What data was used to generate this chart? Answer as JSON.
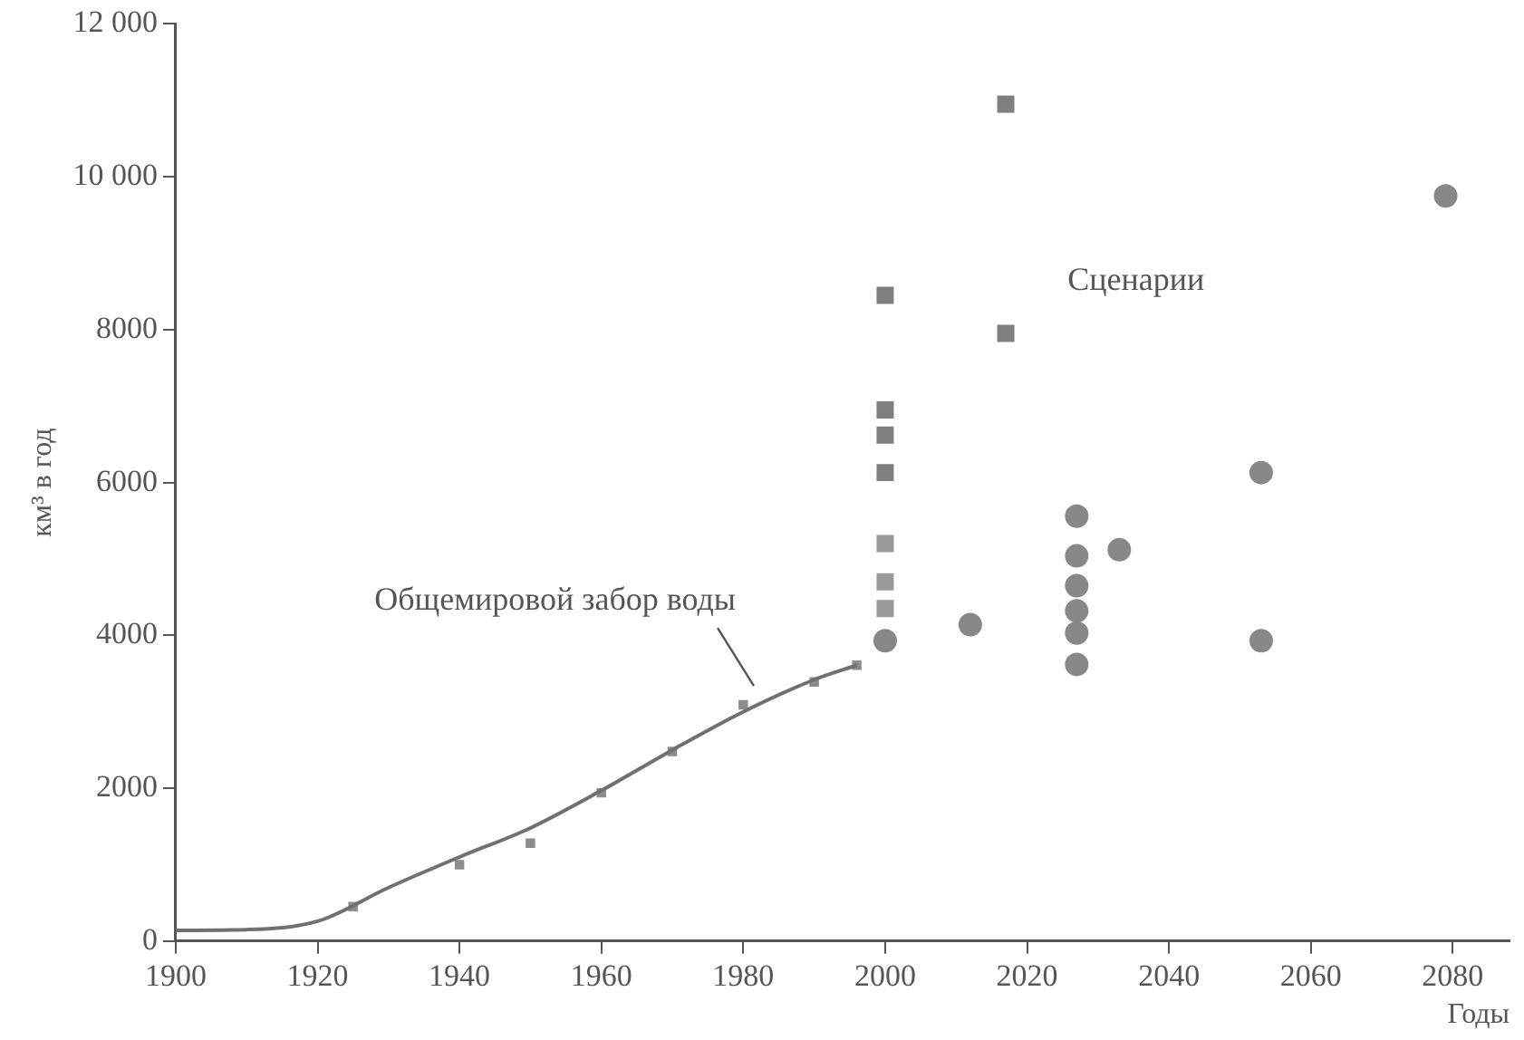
{
  "chart_data": {
    "type": "scatter",
    "xlabel": "Годы",
    "ylabel": "км³ в год",
    "xlim": [
      1900,
      2088
    ],
    "xticks": [
      1900,
      1920,
      1940,
      1960,
      1980,
      2000,
      2020,
      2040,
      2060,
      2080
    ],
    "ylim": [
      0,
      12000
    ],
    "yticks": [
      0,
      2000,
      4000,
      6000,
      {
        "value": 8000,
        "label": "8000"
      },
      {
        "value": 10000,
        "label": "10 000"
      },
      {
        "value": 12000,
        "label": "12 000"
      }
    ],
    "grid": false,
    "legend": false,
    "series": [
      {
        "type": "line",
        "marker": "none",
        "color": "#707070",
        "x": [
          1900,
          1910,
          1920,
          1930,
          1940,
          1950,
          1960,
          1970,
          1980,
          1990,
          1996
        ],
        "values": [
          140,
          150,
          260,
          700,
          1100,
          1480,
          1970,
          2500,
          3000,
          3420,
          3610
        ]
      },
      {
        "marker": "square",
        "color": "#8c8c8c",
        "x": [
          1925,
          1940,
          1950,
          1960,
          1970,
          1980,
          1990,
          1996
        ],
        "values": [
          450,
          1000,
          1280,
          1940,
          2480,
          3090,
          3390,
          3610
        ]
      },
      {
        "marker": "square",
        "color": "#7f7f7f",
        "x": [
          2000,
          2000,
          2000,
          2000,
          2017,
          2017
        ],
        "values": [
          8450,
          6950,
          6620,
          6130,
          10950,
          7950
        ]
      },
      {
        "marker": "square",
        "color": "#9a9a9a",
        "x": [
          2000,
          2000,
          2000
        ],
        "values": [
          5200,
          4700,
          4350
        ]
      },
      {
        "marker": "circle",
        "color": "#888888",
        "x": [
          2000,
          2012,
          2027,
          2027,
          2027,
          2027,
          2027,
          2027,
          2033,
          2053,
          2053,
          2079
        ],
        "values": [
          3930,
          4140,
          5560,
          5040,
          4650,
          4320,
          4030,
          3620,
          5120,
          6130,
          3930,
          9750
        ]
      }
    ],
    "annotations": [
      {
        "text": "Общемировой забор воды",
        "x": 1982,
        "y": 3150
      },
      "Сценарии"
    ]
  }
}
